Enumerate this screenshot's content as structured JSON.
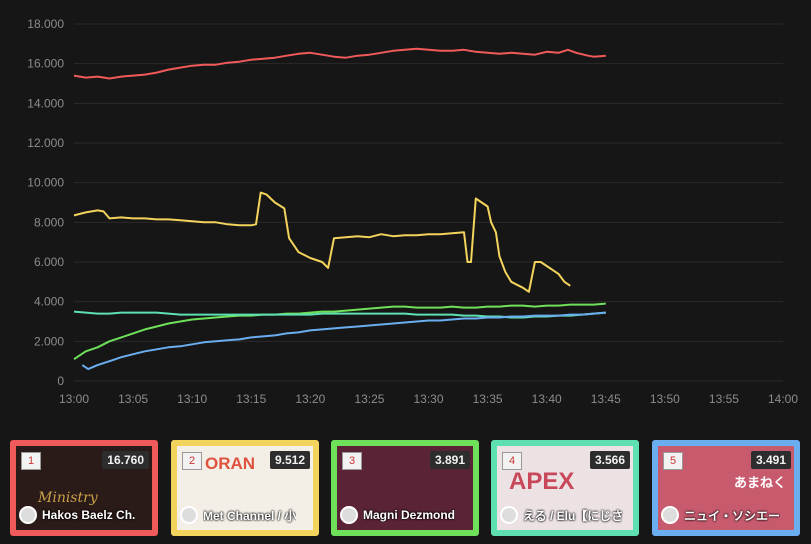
{
  "chart_data": {
    "type": "line",
    "title": "",
    "xlabel": "",
    "ylabel": "",
    "ylim": [
      0,
      18000
    ],
    "yticks": [
      0,
      2000,
      4000,
      6000,
      8000,
      10000,
      12000,
      14000,
      16000,
      18000
    ],
    "ytick_labels": [
      "0",
      "2.000",
      "4.000",
      "6.000",
      "8.000",
      "10.000",
      "12.000",
      "14.000",
      "16.000",
      "18.000"
    ],
    "xlim": [
      "13:00",
      "13:60"
    ],
    "xticks": [
      "13:00",
      "13:05",
      "13:10",
      "13:15",
      "13:20",
      "13:25",
      "13:30",
      "13:35",
      "13:40",
      "13:45",
      "13:50",
      "13:55",
      "14:00"
    ],
    "grid": true,
    "series": [
      {
        "name": "",
        "color": "#f05a5a",
        "points": [
          [
            0,
            15400
          ],
          [
            0.5,
            15350
          ],
          [
            1,
            15300
          ],
          [
            2,
            15350
          ],
          [
            3,
            15250
          ],
          [
            4,
            15350
          ],
          [
            5,
            15400
          ],
          [
            6,
            15450
          ],
          [
            7,
            15550
          ],
          [
            8,
            15700
          ],
          [
            9,
            15800
          ],
          [
            10,
            15900
          ],
          [
            11,
            15950
          ],
          [
            12,
            15950
          ],
          [
            13,
            16050
          ],
          [
            14,
            16100
          ],
          [
            15,
            16200
          ],
          [
            16,
            16250
          ],
          [
            17,
            16300
          ],
          [
            18,
            16400
          ],
          [
            19,
            16500
          ],
          [
            20,
            16550
          ],
          [
            21,
            16450
          ],
          [
            22,
            16350
          ],
          [
            23,
            16300
          ],
          [
            24,
            16400
          ],
          [
            25,
            16450
          ],
          [
            26,
            16550
          ],
          [
            27,
            16650
          ],
          [
            28,
            16700
          ],
          [
            29,
            16750
          ],
          [
            30,
            16700
          ],
          [
            31,
            16650
          ],
          [
            32,
            16650
          ],
          [
            33,
            16700
          ],
          [
            34,
            16600
          ],
          [
            35,
            16550
          ],
          [
            36,
            16500
          ],
          [
            37,
            16550
          ],
          [
            38,
            16500
          ],
          [
            39,
            16450
          ],
          [
            40,
            16600
          ],
          [
            41,
            16550
          ],
          [
            41.8,
            16700
          ],
          [
            42.5,
            16550
          ],
          [
            43.5,
            16400
          ],
          [
            44,
            16350
          ],
          [
            45,
            16400
          ]
        ]
      },
      {
        "name": "",
        "color": "#f2d45c",
        "points": [
          [
            0,
            8350
          ],
          [
            1,
            8500
          ],
          [
            2,
            8600
          ],
          [
            2.5,
            8550
          ],
          [
            3,
            8200
          ],
          [
            4,
            8250
          ],
          [
            5,
            8200
          ],
          [
            6,
            8200
          ],
          [
            7,
            8150
          ],
          [
            8,
            8150
          ],
          [
            9,
            8100
          ],
          [
            10,
            8050
          ],
          [
            11,
            8000
          ],
          [
            12,
            8000
          ],
          [
            13,
            7900
          ],
          [
            14,
            7850
          ],
          [
            15,
            7850
          ],
          [
            15.4,
            7900
          ],
          [
            15.8,
            9500
          ],
          [
            16.3,
            9400
          ],
          [
            17,
            9000
          ],
          [
            17.8,
            8700
          ],
          [
            18.2,
            7200
          ],
          [
            19,
            6500
          ],
          [
            20,
            6200
          ],
          [
            21,
            6000
          ],
          [
            21.5,
            5700
          ],
          [
            22,
            7200
          ],
          [
            23,
            7250
          ],
          [
            24,
            7300
          ],
          [
            25,
            7250
          ],
          [
            26,
            7400
          ],
          [
            27,
            7300
          ],
          [
            28,
            7350
          ],
          [
            29,
            7350
          ],
          [
            30,
            7400
          ],
          [
            31,
            7400
          ],
          [
            32,
            7450
          ],
          [
            33,
            7500
          ],
          [
            33.3,
            6000
          ],
          [
            33.6,
            6000
          ],
          [
            34,
            9200
          ],
          [
            34.5,
            9000
          ],
          [
            35,
            8800
          ],
          [
            35.3,
            8000
          ],
          [
            35.7,
            7500
          ],
          [
            36,
            6300
          ],
          [
            36.5,
            5500
          ],
          [
            37,
            5000
          ],
          [
            38,
            4700
          ],
          [
            38.5,
            4500
          ],
          [
            39,
            6000
          ],
          [
            39.5,
            6000
          ],
          [
            40,
            5800
          ],
          [
            40.5,
            5600
          ],
          [
            41,
            5400
          ],
          [
            41.5,
            5000
          ],
          [
            42,
            4800
          ]
        ]
      },
      {
        "name": "",
        "color": "#6fe05a",
        "points": [
          [
            0,
            1100
          ],
          [
            1,
            1500
          ],
          [
            2,
            1700
          ],
          [
            3,
            2000
          ],
          [
            4,
            2200
          ],
          [
            5,
            2400
          ],
          [
            6,
            2600
          ],
          [
            7,
            2750
          ],
          [
            8,
            2900
          ],
          [
            9,
            3000
          ],
          [
            10,
            3100
          ],
          [
            11,
            3150
          ],
          [
            12,
            3200
          ],
          [
            13,
            3250
          ],
          [
            14,
            3300
          ],
          [
            15,
            3300
          ],
          [
            16,
            3350
          ],
          [
            17,
            3350
          ],
          [
            18,
            3400
          ],
          [
            19,
            3400
          ],
          [
            20,
            3450
          ],
          [
            21,
            3500
          ],
          [
            22,
            3500
          ],
          [
            23,
            3550
          ],
          [
            24,
            3600
          ],
          [
            25,
            3650
          ],
          [
            26,
            3700
          ],
          [
            27,
            3750
          ],
          [
            28,
            3750
          ],
          [
            29,
            3700
          ],
          [
            30,
            3700
          ],
          [
            31,
            3700
          ],
          [
            32,
            3750
          ],
          [
            33,
            3700
          ],
          [
            34,
            3700
          ],
          [
            35,
            3750
          ],
          [
            36,
            3750
          ],
          [
            37,
            3800
          ],
          [
            38,
            3800
          ],
          [
            39,
            3750
          ],
          [
            40,
            3800
          ],
          [
            41,
            3800
          ],
          [
            42,
            3850
          ],
          [
            43,
            3850
          ],
          [
            44,
            3850
          ],
          [
            45,
            3900
          ]
        ]
      },
      {
        "name": "",
        "color": "#5ee0b0",
        "points": [
          [
            0,
            3500
          ],
          [
            1,
            3450
          ],
          [
            2,
            3400
          ],
          [
            3,
            3400
          ],
          [
            4,
            3450
          ],
          [
            5,
            3450
          ],
          [
            6,
            3450
          ],
          [
            7,
            3450
          ],
          [
            8,
            3400
          ],
          [
            9,
            3350
          ],
          [
            10,
            3350
          ],
          [
            11,
            3350
          ],
          [
            12,
            3350
          ],
          [
            13,
            3350
          ],
          [
            14,
            3350
          ],
          [
            15,
            3350
          ],
          [
            16,
            3350
          ],
          [
            17,
            3350
          ],
          [
            18,
            3350
          ],
          [
            19,
            3350
          ],
          [
            20,
            3350
          ],
          [
            21,
            3400
          ],
          [
            22,
            3400
          ],
          [
            23,
            3400
          ],
          [
            24,
            3400
          ],
          [
            25,
            3400
          ],
          [
            26,
            3400
          ],
          [
            27,
            3400
          ],
          [
            28,
            3400
          ],
          [
            29,
            3350
          ],
          [
            30,
            3350
          ],
          [
            31,
            3350
          ],
          [
            32,
            3350
          ],
          [
            33,
            3300
          ],
          [
            34,
            3300
          ],
          [
            35,
            3250
          ],
          [
            36,
            3250
          ],
          [
            37,
            3200
          ],
          [
            38,
            3200
          ],
          [
            39,
            3250
          ],
          [
            40,
            3250
          ],
          [
            41,
            3300
          ],
          [
            42,
            3300
          ],
          [
            43,
            3350
          ],
          [
            44,
            3400
          ],
          [
            45,
            3450
          ]
        ]
      },
      {
        "name": "",
        "color": "#6aaef0",
        "points": [
          [
            0.7,
            800
          ],
          [
            1.2,
            600
          ],
          [
            2,
            800
          ],
          [
            3,
            1000
          ],
          [
            4,
            1200
          ],
          [
            5,
            1350
          ],
          [
            6,
            1500
          ],
          [
            7,
            1600
          ],
          [
            8,
            1700
          ],
          [
            9,
            1750
          ],
          [
            10,
            1850
          ],
          [
            11,
            1950
          ],
          [
            12,
            2000
          ],
          [
            13,
            2050
          ],
          [
            14,
            2100
          ],
          [
            15,
            2200
          ],
          [
            16,
            2250
          ],
          [
            17,
            2300
          ],
          [
            18,
            2400
          ],
          [
            19,
            2450
          ],
          [
            20,
            2550
          ],
          [
            21,
            2600
          ],
          [
            22,
            2650
          ],
          [
            23,
            2700
          ],
          [
            24,
            2750
          ],
          [
            25,
            2800
          ],
          [
            26,
            2850
          ],
          [
            27,
            2900
          ],
          [
            28,
            2950
          ],
          [
            29,
            3000
          ],
          [
            30,
            3050
          ],
          [
            31,
            3050
          ],
          [
            32,
            3100
          ],
          [
            33,
            3150
          ],
          [
            34,
            3150
          ],
          [
            35,
            3200
          ],
          [
            36,
            3200
          ],
          [
            37,
            3250
          ],
          [
            38,
            3250
          ],
          [
            39,
            3300
          ],
          [
            40,
            3300
          ],
          [
            41,
            3300
          ],
          [
            42,
            3350
          ],
          [
            43,
            3350
          ],
          [
            44,
            3400
          ],
          [
            45,
            3450
          ]
        ]
      }
    ]
  },
  "cards": [
    {
      "rank": "1",
      "value": "16.760",
      "channel": "Hakos Baelz Ch.",
      "border_color": "#f05a5a",
      "thumb_color": "#2a1a18",
      "thumb_text": "Ministry"
    },
    {
      "rank": "2",
      "value": "9.512",
      "channel": "Met Channel / 小",
      "border_color": "#f2d45c",
      "thumb_color": "#f3efe6",
      "thumb_text": "ORAN"
    },
    {
      "rank": "3",
      "value": "3.891",
      "channel": "Magni Dezmond",
      "border_color": "#6fe05a",
      "thumb_color": "#5a2436",
      "thumb_text": ""
    },
    {
      "rank": "4",
      "value": "3.566",
      "channel": "える / Elu【にじさ",
      "border_color": "#5ee0b0",
      "thumb_color": "#ece2e4",
      "thumb_text": "APEX"
    },
    {
      "rank": "5",
      "value": "3.491",
      "channel": "ニュイ・ソシエー",
      "border_color": "#6aaef0",
      "thumb_color": "#c85a6e",
      "thumb_text": "あまねく"
    }
  ]
}
